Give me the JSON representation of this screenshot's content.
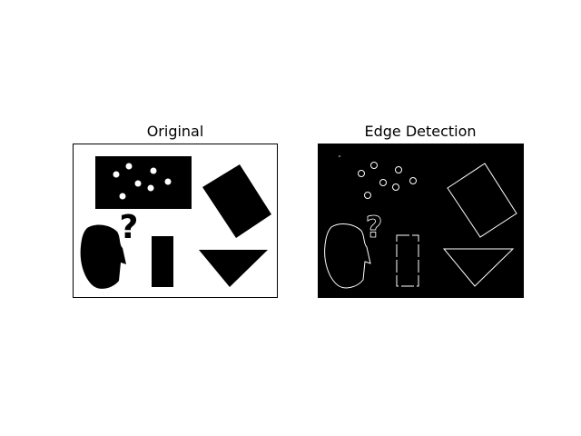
{
  "figure": {
    "panels": [
      {
        "title": "Original",
        "image": "original-shapes-image",
        "background_color": "#ffffff",
        "foreground_color": "#000000"
      },
      {
        "title": "Edge Detection",
        "image": "edge-map-image",
        "background_color": "#000000",
        "foreground_color": "#ffffff"
      }
    ],
    "shapes": [
      "dotted-rectangle",
      "rotated-rectangle",
      "question-mark",
      "head-silhouette",
      "vertical-bar",
      "inverted-triangle"
    ]
  }
}
